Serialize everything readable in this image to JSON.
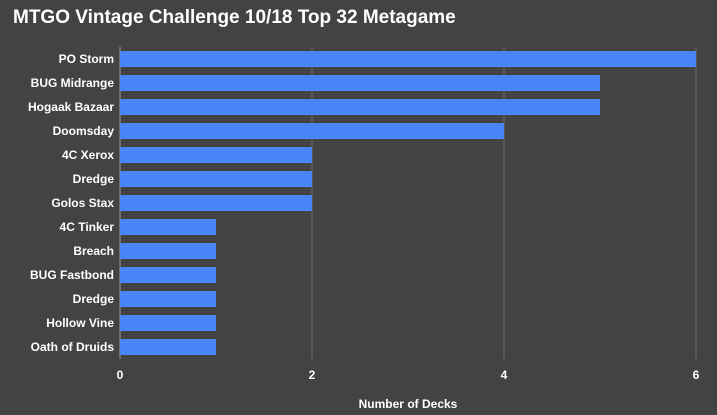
{
  "chart_data": {
    "type": "bar",
    "orientation": "horizontal",
    "title": "MTGO Vintage Challenge 10/18 Top 32 Metagame",
    "xlabel": "Number of Decks",
    "ylabel": "",
    "categories": [
      "PO Storm",
      "BUG Midrange",
      "Hogaak Bazaar",
      "Doomsday",
      "4C Xerox",
      "Dredge",
      "Golos Stax",
      "4C Tinker",
      "Breach",
      "BUG Fastbond",
      "Dredge",
      "Hollow Vine",
      "Oath of Druids"
    ],
    "values": [
      6,
      5,
      5,
      4,
      2,
      2,
      2,
      1,
      1,
      1,
      1,
      1,
      1
    ],
    "xlim": [
      0,
      6
    ],
    "xticks": [
      0,
      2,
      4,
      6
    ],
    "grid": true,
    "legend": "none",
    "colors": {
      "background": "#434343",
      "bar": "#4a86f7",
      "grid": "#6e6e6e",
      "text": "#ffffff"
    }
  }
}
